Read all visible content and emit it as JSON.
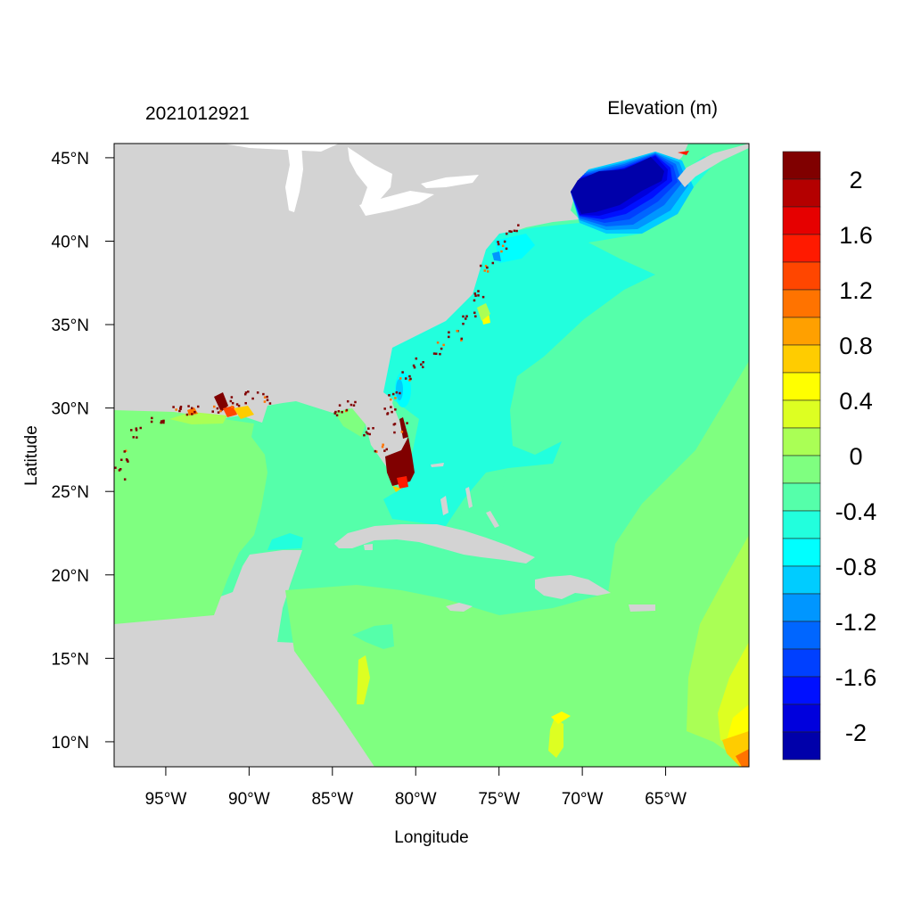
{
  "title_left": "2021012921",
  "title_right": "Elevation (m)",
  "x_axis": {
    "label": "Longitude",
    "ticks": [
      {
        "value": -95,
        "label": "95°W"
      },
      {
        "value": -90,
        "label": "90°W"
      },
      {
        "value": -85,
        "label": "85°W"
      },
      {
        "value": -80,
        "label": "80°W"
      },
      {
        "value": -75,
        "label": "75°W"
      },
      {
        "value": -70,
        "label": "70°W"
      },
      {
        "value": -65,
        "label": "65°W"
      }
    ],
    "range": [
      -98.1,
      -60.0
    ]
  },
  "y_axis": {
    "label": "Latitude",
    "ticks": [
      {
        "value": 45,
        "label": "45°N"
      },
      {
        "value": 40,
        "label": "40°N"
      },
      {
        "value": 35,
        "label": "35°N"
      },
      {
        "value": 30,
        "label": "30°N"
      },
      {
        "value": 25,
        "label": "25°N"
      },
      {
        "value": 20,
        "label": "20°N"
      },
      {
        "value": 15,
        "label": "15°N"
      },
      {
        "value": 10,
        "label": "10°N"
      }
    ],
    "range": [
      8.5,
      45.85
    ]
  },
  "colorbar": {
    "colors_top_to_bottom": [
      "#800000",
      "#B40000",
      "#E60000",
      "#FF1A00",
      "#FF4600",
      "#FF7300",
      "#FFA000",
      "#FFCC00",
      "#FFFF00",
      "#DDFF22",
      "#AAFF55",
      "#7FFF80",
      "#55FFAA",
      "#22FFDD",
      "#00FFFF",
      "#00CCFF",
      "#0096FF",
      "#0066FF",
      "#0040FF",
      "#0010FF",
      "#0000DD",
      "#0000AA"
    ],
    "labels": [
      "2",
      "1.6",
      "1.2",
      "0.8",
      "0.4",
      "0",
      "-0.4",
      "-0.8",
      "-1.2",
      "-1.6",
      "-2"
    ]
  },
  "colors": {
    "land": "#D3D3D3",
    "lakes": "#FFFFFF"
  }
}
